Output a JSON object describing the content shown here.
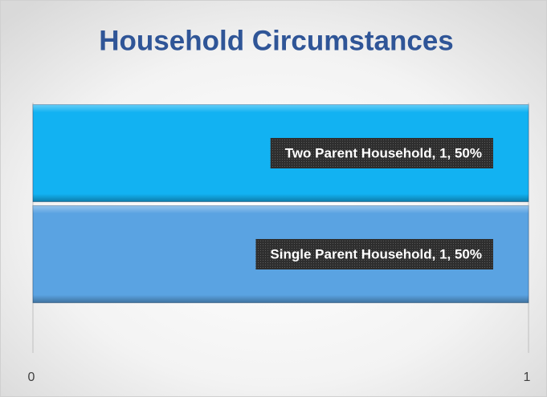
{
  "chart_data": {
    "type": "hbar",
    "title": "Household Circumstances",
    "categories": [
      "Single Parent Household",
      "Two Parent Household"
    ],
    "values": [
      1,
      1
    ],
    "value_labels": [
      "Single Parent Household, 1, 50%",
      "Two Parent Household, 1, 50%"
    ],
    "colors": [
      "#5aa3e2",
      "#12b2f2"
    ],
    "xlim": [
      0,
      1
    ],
    "xticks": [
      0,
      1
    ],
    "grid": true
  }
}
